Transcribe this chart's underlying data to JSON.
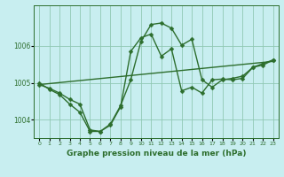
{
  "background_color": "#c8eef0",
  "plot_bg_color": "#c8eef0",
  "grid_color": "#90c8b4",
  "line_color": "#2d6e2d",
  "xlabel": "Graphe pression niveau de la mer (hPa)",
  "xlabel_fontsize": 6.5,
  "xlim": [
    -0.5,
    23.5
  ],
  "ylim": [
    1003.5,
    1007.1
  ],
  "yticks": [
    1004,
    1005,
    1006
  ],
  "xticks": [
    0,
    1,
    2,
    3,
    4,
    5,
    6,
    7,
    8,
    9,
    10,
    11,
    12,
    13,
    14,
    15,
    16,
    17,
    18,
    19,
    20,
    21,
    22,
    23
  ],
  "series1_x": [
    0,
    23
  ],
  "series1_y": [
    1004.95,
    1005.58
  ],
  "series2_x": [
    0,
    1,
    2,
    3,
    4,
    5,
    6,
    7,
    8,
    9,
    10,
    11,
    12,
    13,
    14,
    15,
    16,
    17,
    18,
    19,
    20,
    21,
    22,
    23
  ],
  "series2_y": [
    1004.95,
    1004.85,
    1004.72,
    1004.55,
    1004.42,
    1003.72,
    1003.68,
    1003.88,
    1004.38,
    1005.08,
    1006.12,
    1006.58,
    1006.62,
    1006.48,
    1006.02,
    1006.18,
    1005.08,
    1004.88,
    1005.08,
    1005.12,
    1005.18,
    1005.42,
    1005.48,
    1005.62
  ],
  "series3_x": [
    0,
    1,
    2,
    3,
    4,
    5,
    6,
    7,
    8,
    9,
    10,
    11,
    12,
    13,
    14,
    15,
    16,
    17,
    18,
    19,
    20,
    21,
    22,
    23
  ],
  "series3_y": [
    1005.0,
    1004.82,
    1004.68,
    1004.42,
    1004.2,
    1003.68,
    1003.68,
    1003.85,
    1004.35,
    1005.85,
    1006.22,
    1006.32,
    1005.72,
    1005.92,
    1004.78,
    1004.88,
    1004.72,
    1005.08,
    1005.1,
    1005.08,
    1005.12,
    1005.42,
    1005.52,
    1005.62
  ],
  "marker_size": 2.5,
  "line_width": 1.0
}
